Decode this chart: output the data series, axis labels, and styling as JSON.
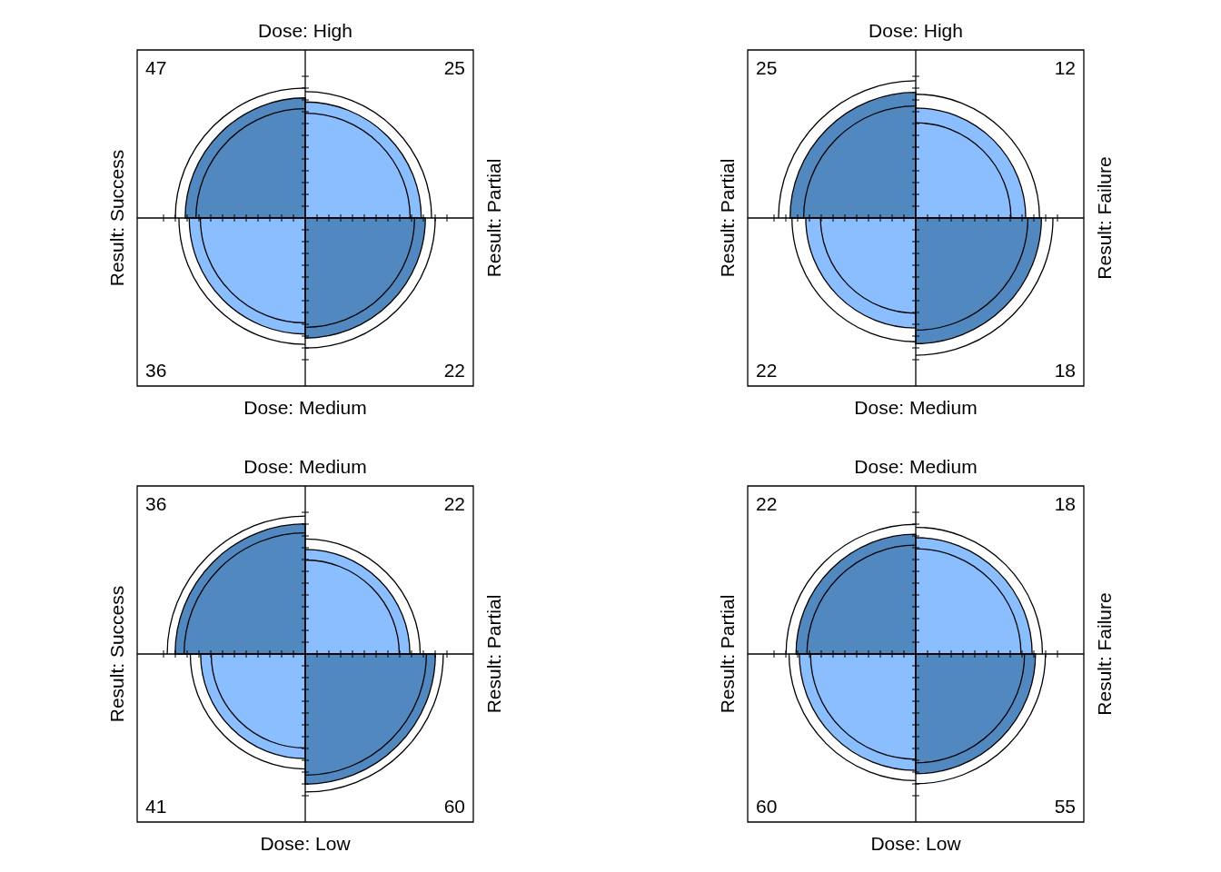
{
  "chart_data": [
    {
      "type": "other",
      "title": "Dose: High",
      "xlabel": "Dose: Medium",
      "ylabel": "Result: Success",
      "y2label": "Result: Partial",
      "values": [
        47,
        25,
        36,
        22
      ],
      "data_labels": true,
      "colors": [
        "#5288c0",
        "#8bbeff",
        "#8bbeff",
        "#5288c0"
      ]
    },
    {
      "type": "other",
      "title": "Dose: High",
      "xlabel": "Dose: Medium",
      "ylabel": "Result: Partial",
      "y2label": "Result: Failure",
      "values": [
        25,
        12,
        22,
        18
      ],
      "data_labels": true,
      "colors": [
        "#5288c0",
        "#8bbeff",
        "#8bbeff",
        "#5288c0"
      ]
    },
    {
      "type": "other",
      "title": "Dose: Medium",
      "xlabel": "Dose: Low",
      "ylabel": "Result: Success",
      "y2label": "Result: Partial",
      "values": [
        36,
        22,
        41,
        60
      ],
      "data_labels": true,
      "colors": [
        "#5288c0",
        "#8bbeff",
        "#8bbeff",
        "#5288c0"
      ]
    },
    {
      "type": "other",
      "title": "Dose: Medium",
      "xlabel": "Dose: Low",
      "ylabel": "Result: Partial",
      "y2label": "Result: Failure",
      "values": [
        22,
        18,
        60,
        55
      ],
      "data_labels": true,
      "colors": [
        "#5288c0",
        "#8bbeff",
        "#8bbeff",
        "#5288c0"
      ]
    }
  ]
}
